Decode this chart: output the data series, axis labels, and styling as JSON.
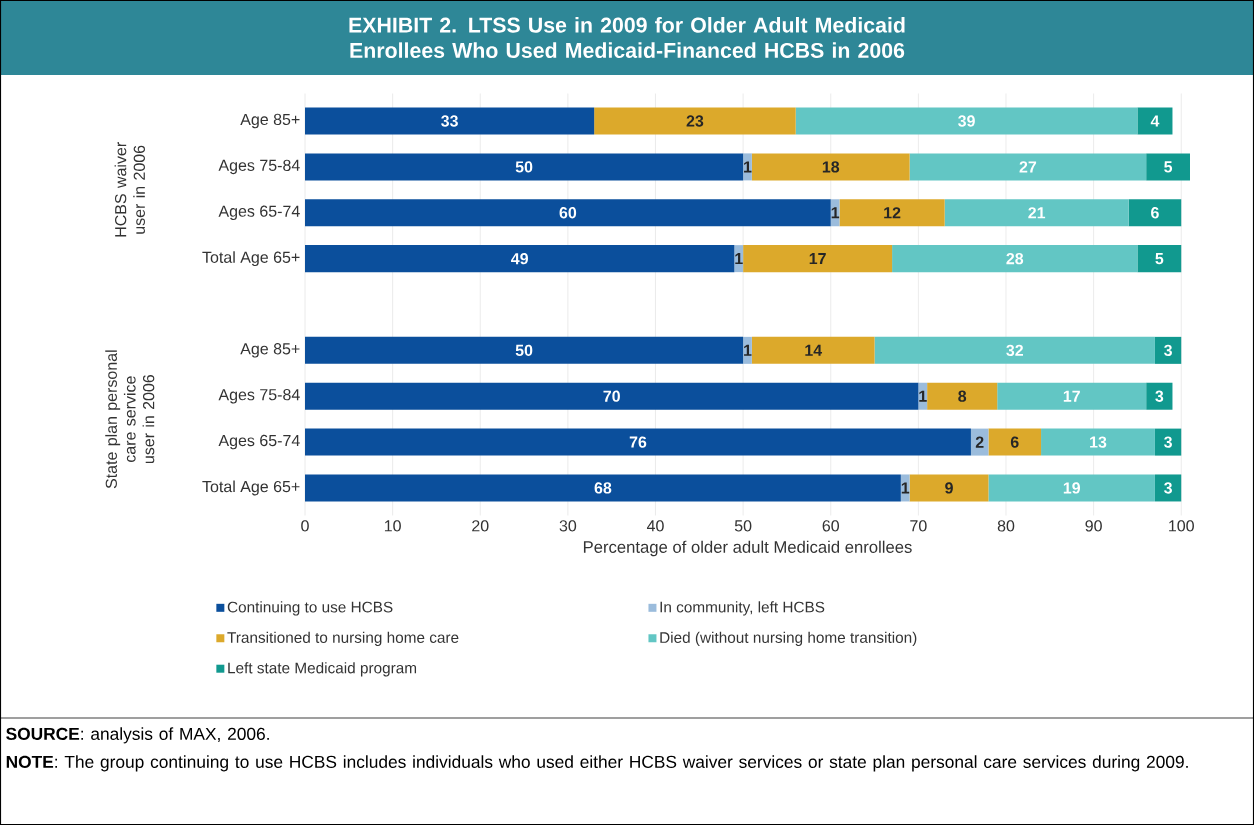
{
  "chart_data": {
    "type": "bar",
    "orientation": "horizontal",
    "stacked": true,
    "title": "EXHIBIT 2. LTSS Use in 2009 for Older Adult Medicaid Enrollees Who Used Medicaid-Financed HCBS in 2006",
    "xlabel": "Percentage of older adult Medicaid enrollees",
    "categories": [
      "Age 85+",
      "Ages 75-84",
      "Ages 65-74",
      "Total Age 65+",
      null,
      "Age 85+",
      "Ages 75-84",
      "Ages 65-74",
      "Total Age 65+"
    ],
    "series": [
      {
        "name": "Continuing to use HCBS",
        "color": "#0b4f9c",
        "values": [
          33,
          50,
          60,
          49,
          null,
          50,
          70,
          76,
          68
        ]
      },
      {
        "name": "In community, left HCBS",
        "color": "#9bbcdc",
        "values": [
          null,
          1,
          1,
          1,
          null,
          1,
          1,
          2,
          1
        ]
      },
      {
        "name": "Transitioned to nursing home care",
        "color": "#dca92b",
        "values": [
          23,
          18,
          12,
          17,
          null,
          14,
          8,
          6,
          9
        ]
      },
      {
        "name": "Died (without nursing home transition)",
        "color": "#62c6c4",
        "values": [
          39,
          27,
          21,
          28,
          null,
          32,
          17,
          13,
          19
        ]
      },
      {
        "name": "Left state Medicaid program",
        "color": "#11998f",
        "values": [
          4,
          5,
          6,
          5,
          null,
          3,
          3,
          3,
          3
        ]
      }
    ],
    "xlim": [
      0,
      101
    ],
    "xticks": [
      0,
      10,
      20,
      30,
      40,
      50,
      60,
      70,
      80,
      90,
      100
    ],
    "grid": "x",
    "legend": "bottom",
    "data_labels": true,
    "annotations": [
      "HCBS waiver user in 2006",
      "State plan personal care service user in 2006",
      "**SOURCE**:  analysis of MAX, 2006.",
      "**NOTE**:  The group continuing to use HCBS includes individuals who used either HCBS waiver services or state plan personal care services during 2009."
    ]
  }
}
